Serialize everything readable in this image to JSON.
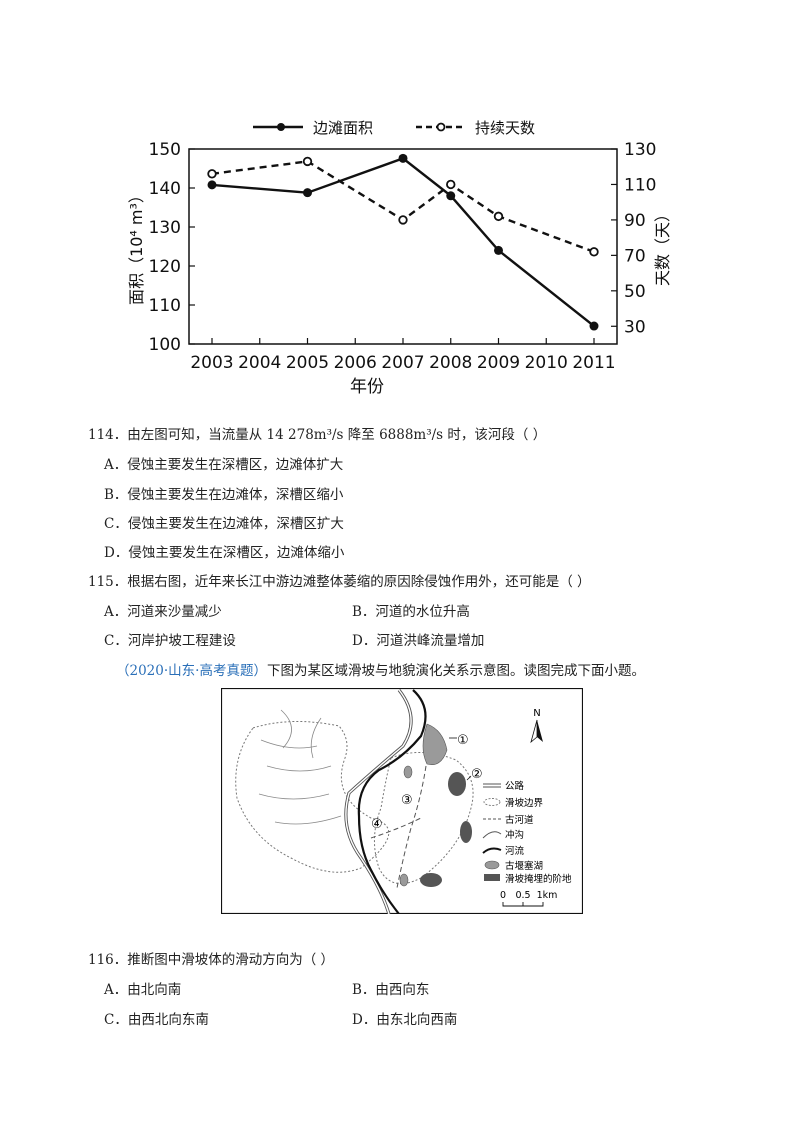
{
  "chart_data": {
    "type": "line",
    "x": [
      "2003",
      "2004",
      "2005",
      "2006",
      "2007",
      "2008",
      "2009",
      "2010",
      "2011"
    ],
    "xlabel": "年份",
    "ylabel_left": "面积（10⁴ m³）",
    "ylabel_right": "天数（天）",
    "ylim_left": [
      100,
      150
    ],
    "ylim_right": [
      20,
      130
    ],
    "yticks_left": [
      "100",
      "110",
      "120",
      "130",
      "140",
      "150"
    ],
    "yticks_right": [
      "30",
      "50",
      "70",
      "90",
      "110",
      "130"
    ],
    "legend_position": "top-center",
    "series": [
      {
        "name": "边滩面积",
        "axis": "left",
        "style": "solid-filled",
        "x": [
          "2003",
          "2005",
          "2007",
          "2008",
          "2009",
          "2011"
        ],
        "values": [
          140.8,
          138.8,
          147.6,
          138.0,
          124.0,
          104.6
        ]
      },
      {
        "name": "持续天数",
        "axis": "right",
        "style": "dashed-open",
        "x": [
          "2003",
          "2005",
          "2007",
          "2008",
          "2009",
          "2011"
        ],
        "values": [
          116,
          123,
          90,
          110,
          92,
          72
        ]
      }
    ]
  },
  "q114": {
    "stem": "114．由左图可知，当流量从 14 278m³/s 降至 6888m³/s 时，该河段（    ）",
    "options": [
      "A．侵蚀主要发生在深槽区，边滩体扩大",
      "B．侵蚀主要发生在边滩体，深槽区缩小",
      "C．侵蚀主要发生在边滩体，深槽区扩大",
      "D．侵蚀主要发生在深槽区，边滩体缩小"
    ]
  },
  "q115": {
    "stem": "115．根据右图，近年来长江中游边滩整体萎缩的原因除侵蚀作用外，还可能是（    ）",
    "options": [
      "A．河道来沙量减少",
      "B．河道的水位升高",
      "C．河岸护坡工程建设",
      "D．河道洪峰流量增加"
    ]
  },
  "intro": {
    "source": "（2020·山东·高考真题）",
    "text": "下图为某区域滑坡与地貌演化关系示意图。读图完成下面小题。"
  },
  "map": {
    "north": "N",
    "markers": [
      "①",
      "②",
      "③",
      "④"
    ],
    "legend": [
      "公路",
      "滑坡边界",
      "古河道",
      "冲沟",
      "河流",
      "古堰塞湖",
      "滑坡掩埋的阶地"
    ],
    "scale_labels": [
      "0",
      "0.5",
      "1km"
    ]
  },
  "q116": {
    "stem": "116．推断图中滑坡体的滑动方向为（    ）",
    "options": [
      "A．由北向南",
      "B．由西向东",
      "C．由西北向东南",
      "D．由东北向西南"
    ]
  }
}
